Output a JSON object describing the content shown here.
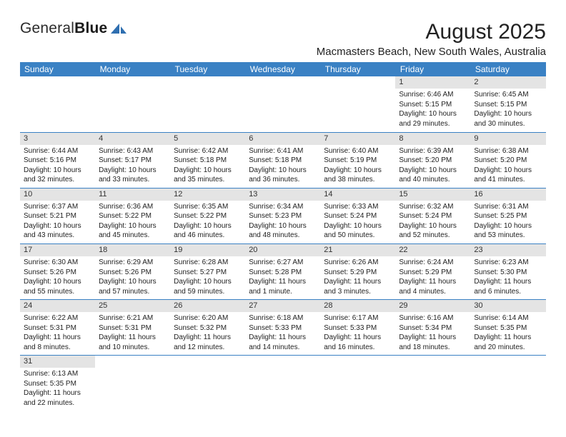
{
  "brand": {
    "part1": "General",
    "part2": "Blue"
  },
  "title": "August 2025",
  "location": "Macmasters Beach, New South Wales, Australia",
  "colors": {
    "header_bg": "#3a81c4",
    "header_text": "#ffffff",
    "daynum_bg": "#e4e4e4",
    "rule": "#3a81c4",
    "logo_blue": "#2f6fb0"
  },
  "weekdays": [
    "Sunday",
    "Monday",
    "Tuesday",
    "Wednesday",
    "Thursday",
    "Friday",
    "Saturday"
  ],
  "weeks": [
    [
      {
        "n": "",
        "sr": "",
        "ss": "",
        "d1": "",
        "d2": "",
        "e": true
      },
      {
        "n": "",
        "sr": "",
        "ss": "",
        "d1": "",
        "d2": "",
        "e": true
      },
      {
        "n": "",
        "sr": "",
        "ss": "",
        "d1": "",
        "d2": "",
        "e": true
      },
      {
        "n": "",
        "sr": "",
        "ss": "",
        "d1": "",
        "d2": "",
        "e": true
      },
      {
        "n": "",
        "sr": "",
        "ss": "",
        "d1": "",
        "d2": "",
        "e": true
      },
      {
        "n": "1",
        "sr": "Sunrise: 6:46 AM",
        "ss": "Sunset: 5:15 PM",
        "d1": "Daylight: 10 hours",
        "d2": "and 29 minutes."
      },
      {
        "n": "2",
        "sr": "Sunrise: 6:45 AM",
        "ss": "Sunset: 5:15 PM",
        "d1": "Daylight: 10 hours",
        "d2": "and 30 minutes."
      }
    ],
    [
      {
        "n": "3",
        "sr": "Sunrise: 6:44 AM",
        "ss": "Sunset: 5:16 PM",
        "d1": "Daylight: 10 hours",
        "d2": "and 32 minutes."
      },
      {
        "n": "4",
        "sr": "Sunrise: 6:43 AM",
        "ss": "Sunset: 5:17 PM",
        "d1": "Daylight: 10 hours",
        "d2": "and 33 minutes."
      },
      {
        "n": "5",
        "sr": "Sunrise: 6:42 AM",
        "ss": "Sunset: 5:18 PM",
        "d1": "Daylight: 10 hours",
        "d2": "and 35 minutes."
      },
      {
        "n": "6",
        "sr": "Sunrise: 6:41 AM",
        "ss": "Sunset: 5:18 PM",
        "d1": "Daylight: 10 hours",
        "d2": "and 36 minutes."
      },
      {
        "n": "7",
        "sr": "Sunrise: 6:40 AM",
        "ss": "Sunset: 5:19 PM",
        "d1": "Daylight: 10 hours",
        "d2": "and 38 minutes."
      },
      {
        "n": "8",
        "sr": "Sunrise: 6:39 AM",
        "ss": "Sunset: 5:20 PM",
        "d1": "Daylight: 10 hours",
        "d2": "and 40 minutes."
      },
      {
        "n": "9",
        "sr": "Sunrise: 6:38 AM",
        "ss": "Sunset: 5:20 PM",
        "d1": "Daylight: 10 hours",
        "d2": "and 41 minutes."
      }
    ],
    [
      {
        "n": "10",
        "sr": "Sunrise: 6:37 AM",
        "ss": "Sunset: 5:21 PM",
        "d1": "Daylight: 10 hours",
        "d2": "and 43 minutes."
      },
      {
        "n": "11",
        "sr": "Sunrise: 6:36 AM",
        "ss": "Sunset: 5:22 PM",
        "d1": "Daylight: 10 hours",
        "d2": "and 45 minutes."
      },
      {
        "n": "12",
        "sr": "Sunrise: 6:35 AM",
        "ss": "Sunset: 5:22 PM",
        "d1": "Daylight: 10 hours",
        "d2": "and 46 minutes."
      },
      {
        "n": "13",
        "sr": "Sunrise: 6:34 AM",
        "ss": "Sunset: 5:23 PM",
        "d1": "Daylight: 10 hours",
        "d2": "and 48 minutes."
      },
      {
        "n": "14",
        "sr": "Sunrise: 6:33 AM",
        "ss": "Sunset: 5:24 PM",
        "d1": "Daylight: 10 hours",
        "d2": "and 50 minutes."
      },
      {
        "n": "15",
        "sr": "Sunrise: 6:32 AM",
        "ss": "Sunset: 5:24 PM",
        "d1": "Daylight: 10 hours",
        "d2": "and 52 minutes."
      },
      {
        "n": "16",
        "sr": "Sunrise: 6:31 AM",
        "ss": "Sunset: 5:25 PM",
        "d1": "Daylight: 10 hours",
        "d2": "and 53 minutes."
      }
    ],
    [
      {
        "n": "17",
        "sr": "Sunrise: 6:30 AM",
        "ss": "Sunset: 5:26 PM",
        "d1": "Daylight: 10 hours",
        "d2": "and 55 minutes."
      },
      {
        "n": "18",
        "sr": "Sunrise: 6:29 AM",
        "ss": "Sunset: 5:26 PM",
        "d1": "Daylight: 10 hours",
        "d2": "and 57 minutes."
      },
      {
        "n": "19",
        "sr": "Sunrise: 6:28 AM",
        "ss": "Sunset: 5:27 PM",
        "d1": "Daylight: 10 hours",
        "d2": "and 59 minutes."
      },
      {
        "n": "20",
        "sr": "Sunrise: 6:27 AM",
        "ss": "Sunset: 5:28 PM",
        "d1": "Daylight: 11 hours",
        "d2": "and 1 minute."
      },
      {
        "n": "21",
        "sr": "Sunrise: 6:26 AM",
        "ss": "Sunset: 5:29 PM",
        "d1": "Daylight: 11 hours",
        "d2": "and 3 minutes."
      },
      {
        "n": "22",
        "sr": "Sunrise: 6:24 AM",
        "ss": "Sunset: 5:29 PM",
        "d1": "Daylight: 11 hours",
        "d2": "and 4 minutes."
      },
      {
        "n": "23",
        "sr": "Sunrise: 6:23 AM",
        "ss": "Sunset: 5:30 PM",
        "d1": "Daylight: 11 hours",
        "d2": "and 6 minutes."
      }
    ],
    [
      {
        "n": "24",
        "sr": "Sunrise: 6:22 AM",
        "ss": "Sunset: 5:31 PM",
        "d1": "Daylight: 11 hours",
        "d2": "and 8 minutes."
      },
      {
        "n": "25",
        "sr": "Sunrise: 6:21 AM",
        "ss": "Sunset: 5:31 PM",
        "d1": "Daylight: 11 hours",
        "d2": "and 10 minutes."
      },
      {
        "n": "26",
        "sr": "Sunrise: 6:20 AM",
        "ss": "Sunset: 5:32 PM",
        "d1": "Daylight: 11 hours",
        "d2": "and 12 minutes."
      },
      {
        "n": "27",
        "sr": "Sunrise: 6:18 AM",
        "ss": "Sunset: 5:33 PM",
        "d1": "Daylight: 11 hours",
        "d2": "and 14 minutes."
      },
      {
        "n": "28",
        "sr": "Sunrise: 6:17 AM",
        "ss": "Sunset: 5:33 PM",
        "d1": "Daylight: 11 hours",
        "d2": "and 16 minutes."
      },
      {
        "n": "29",
        "sr": "Sunrise: 6:16 AM",
        "ss": "Sunset: 5:34 PM",
        "d1": "Daylight: 11 hours",
        "d2": "and 18 minutes."
      },
      {
        "n": "30",
        "sr": "Sunrise: 6:14 AM",
        "ss": "Sunset: 5:35 PM",
        "d1": "Daylight: 11 hours",
        "d2": "and 20 minutes."
      }
    ],
    [
      {
        "n": "31",
        "sr": "Sunrise: 6:13 AM",
        "ss": "Sunset: 5:35 PM",
        "d1": "Daylight: 11 hours",
        "d2": "and 22 minutes."
      },
      {
        "n": "",
        "sr": "",
        "ss": "",
        "d1": "",
        "d2": "",
        "b": true
      },
      {
        "n": "",
        "sr": "",
        "ss": "",
        "d1": "",
        "d2": "",
        "b": true
      },
      {
        "n": "",
        "sr": "",
        "ss": "",
        "d1": "",
        "d2": "",
        "b": true
      },
      {
        "n": "",
        "sr": "",
        "ss": "",
        "d1": "",
        "d2": "",
        "b": true
      },
      {
        "n": "",
        "sr": "",
        "ss": "",
        "d1": "",
        "d2": "",
        "b": true
      },
      {
        "n": "",
        "sr": "",
        "ss": "",
        "d1": "",
        "d2": "",
        "b": true
      }
    ]
  ]
}
